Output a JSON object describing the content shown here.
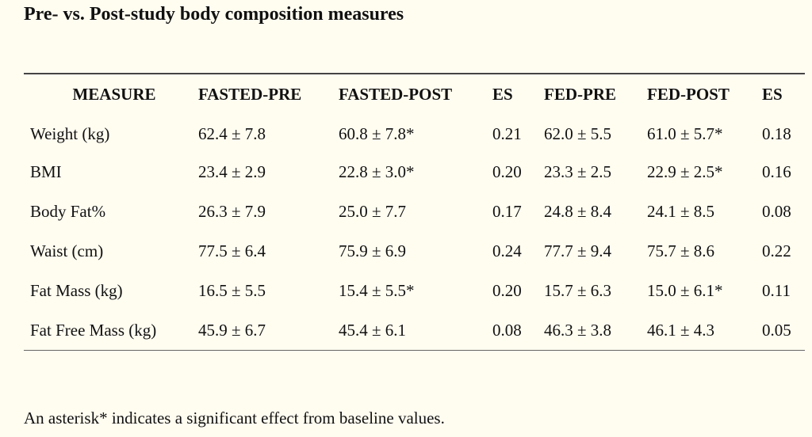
{
  "title": "Pre- vs. Post-study body composition measures",
  "table": {
    "headers": [
      "MEASURE",
      "FASTED-PRE",
      "FASTED-POST",
      "ES",
      "FED-PRE",
      "FED-POST",
      "ES"
    ],
    "rows": [
      [
        "Weight (kg)",
        "62.4 ± 7.8",
        "60.8 ± 7.8*",
        "0.21",
        "62.0 ± 5.5",
        "61.0 ± 5.7*",
        "0.18"
      ],
      [
        "BMI",
        "23.4 ± 2.9",
        "22.8 ± 3.0*",
        "0.20",
        "23.3 ± 2.5",
        "22.9 ± 2.5*",
        "0.16"
      ],
      [
        "Body Fat%",
        "26.3 ± 7.9",
        "25.0 ± 7.7",
        "0.17",
        "24.8 ± 8.4",
        "24.1 ± 8.5",
        "0.08"
      ],
      [
        "Waist (cm)",
        "77.5 ± 6.4",
        "75.9 ± 6.9",
        "0.24",
        "77.7 ± 9.4",
        "75.7 ± 8.6",
        "0.22"
      ],
      [
        "Fat Mass (kg)",
        "16.5 ± 5.5",
        "15.4 ± 5.5*",
        "0.20",
        "15.7 ± 6.3",
        "15.0 ± 6.1*",
        "0.11"
      ],
      [
        "Fat Free Mass (kg)",
        "45.9 ± 6.7",
        "45.4 ± 6.1",
        "0.08",
        "46.3 ± 3.8",
        "46.1 ± 4.3",
        "0.05"
      ]
    ]
  },
  "footnote": "An asterisk* indicates a significant effect from baseline values."
}
